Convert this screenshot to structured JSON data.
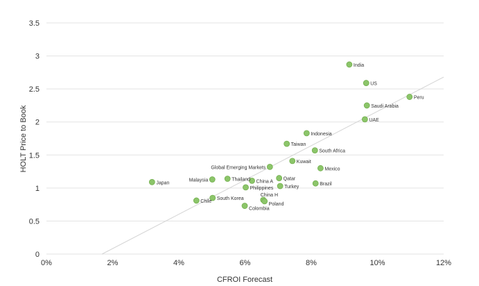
{
  "chart_data": {
    "type": "scatter",
    "title": "",
    "xlabel": "CFROI Forecast",
    "ylabel": "HOLT Price to Book",
    "xlim": [
      0,
      0.12
    ],
    "ylim": [
      0,
      3.5
    ],
    "x_ticks": [
      {
        "value": 0,
        "label": "0%"
      },
      {
        "value": 0.02,
        "label": "2%"
      },
      {
        "value": 0.04,
        "label": "4%"
      },
      {
        "value": 0.06,
        "label": "6%"
      },
      {
        "value": 0.08,
        "label": "8%"
      },
      {
        "value": 0.1,
        "label": "10%"
      },
      {
        "value": 0.12,
        "label": "12%"
      }
    ],
    "y_ticks": [
      {
        "value": 0,
        "label": "0"
      },
      {
        "value": 0.5,
        "label": "0.5"
      },
      {
        "value": 1,
        "label": "1"
      },
      {
        "value": 1.5,
        "label": "1.5"
      },
      {
        "value": 2,
        "label": "2"
      },
      {
        "value": 2.5,
        "label": "2.5"
      },
      {
        "value": 3,
        "label": "3"
      },
      {
        "value": 3.5,
        "label": "3.5"
      }
    ],
    "grid": true,
    "legend": "none",
    "trendline": {
      "x": [
        0.0168,
        0.12
      ],
      "y": [
        0,
        2.68
      ]
    },
    "points": [
      {
        "label": "India",
        "x": 0.0915,
        "y": 2.87
      },
      {
        "label": "US",
        "x": 0.0966,
        "y": 2.59
      },
      {
        "label": "Peru",
        "x": 0.1097,
        "y": 2.38
      },
      {
        "label": "Saudi Arabia",
        "x": 0.0968,
        "y": 2.25
      },
      {
        "label": "UAE",
        "x": 0.0962,
        "y": 2.04
      },
      {
        "label": "Indonesia",
        "x": 0.0786,
        "y": 1.83
      },
      {
        "label": "Taiwan",
        "x": 0.0726,
        "y": 1.67
      },
      {
        "label": "South Africa",
        "x": 0.0811,
        "y": 1.57
      },
      {
        "label": "Kuwait",
        "x": 0.0743,
        "y": 1.41
      },
      {
        "label": "Global Emerging Markets",
        "x": 0.0675,
        "y": 1.32
      },
      {
        "label": "Mexico",
        "x": 0.0828,
        "y": 1.3
      },
      {
        "label": "Japan",
        "x": 0.0319,
        "y": 1.09
      },
      {
        "label": "Malaysia",
        "x": 0.0501,
        "y": 1.13
      },
      {
        "label": "Thailand",
        "x": 0.0547,
        "y": 1.14
      },
      {
        "label": "China A",
        "x": 0.0621,
        "y": 1.11
      },
      {
        "label": "Qatar",
        "x": 0.0703,
        "y": 1.15
      },
      {
        "label": "Philippines",
        "x": 0.0602,
        "y": 1.01
      },
      {
        "label": "Turkey",
        "x": 0.0706,
        "y": 1.03
      },
      {
        "label": "Brazil",
        "x": 0.0813,
        "y": 1.07
      },
      {
        "label": "Chile",
        "x": 0.0453,
        "y": 0.81
      },
      {
        "label": "South Korea",
        "x": 0.0502,
        "y": 0.85
      },
      {
        "label": "China H",
        "x": 0.0655,
        "y": 0.82
      },
      {
        "label": "Poland",
        "x": 0.0659,
        "y": 0.8
      },
      {
        "label": "Colombia",
        "x": 0.0599,
        "y": 0.73
      }
    ]
  }
}
